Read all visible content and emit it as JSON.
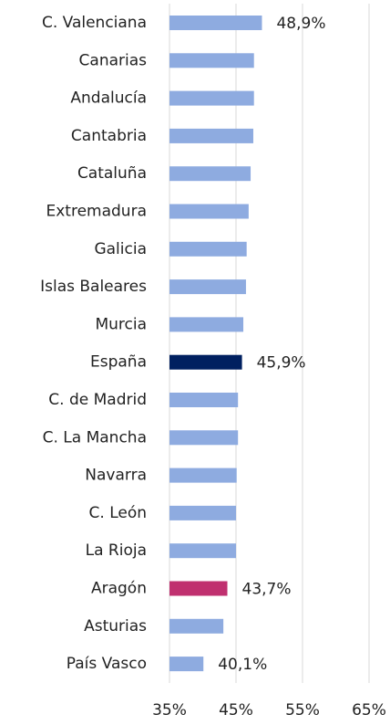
{
  "chart_data": {
    "type": "bar",
    "orientation": "horizontal",
    "categories": [
      "C. Valenciana",
      "Canarias",
      "Andalucía",
      "Cantabria",
      "Cataluña",
      "Extremadura",
      "Galicia",
      "Islas Baleares",
      "Murcia",
      "España",
      "C. de Madrid",
      "C. La Mancha",
      "Navarra",
      "C. León",
      "La Rioja",
      "Aragón",
      "Asturias",
      "País Vasco"
    ],
    "values": [
      48.9,
      47.7,
      47.7,
      47.6,
      47.2,
      46.9,
      46.6,
      46.5,
      46.1,
      45.9,
      45.3,
      45.3,
      45.1,
      45.0,
      45.0,
      43.7,
      43.1,
      40.1
    ],
    "value_labels": [
      "48,9%",
      null,
      null,
      null,
      null,
      null,
      null,
      null,
      null,
      "45,9%",
      null,
      null,
      null,
      null,
      null,
      "43,7%",
      null,
      "40,1%"
    ],
    "colors": [
      "#8eabe0",
      "#8eabe0",
      "#8eabe0",
      "#8eabe0",
      "#8eabe0",
      "#8eabe0",
      "#8eabe0",
      "#8eabe0",
      "#8eabe0",
      "#002060",
      "#8eabe0",
      "#8eabe0",
      "#8eabe0",
      "#8eabe0",
      "#8eabe0",
      "#c0306f",
      "#8eabe0",
      "#8eabe0"
    ],
    "xlim": [
      35,
      65
    ],
    "xticks": [
      {
        "value": 35,
        "label": "35%"
      },
      {
        "value": 45,
        "label": "45%"
      },
      {
        "value": 55,
        "label": "55%"
      },
      {
        "value": 65,
        "label": "65%"
      }
    ],
    "grid": true
  }
}
